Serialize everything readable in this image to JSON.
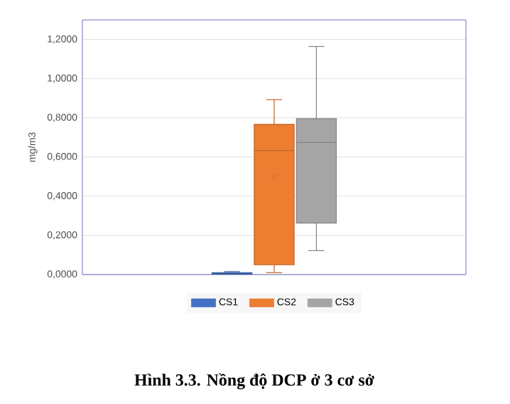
{
  "chart_data": {
    "type": "box",
    "title": "Hình 3.3. Nồng độ DCP ở 3 cơ sở",
    "ylabel": "mg/m3",
    "categories": [
      null
    ],
    "series": [
      {
        "name": "CS1",
        "color": "#4472c4",
        "boxes": [
          {
            "low": 0,
            "q1": 0.002,
            "median": 0.005,
            "q3": 0.01,
            "high": 0.015
          }
        ]
      },
      {
        "name": "CS2",
        "color": "#ed7d31",
        "boxes": [
          {
            "low": 0.01,
            "q1": 0.05,
            "median": 0.633,
            "q3": 0.767,
            "high": 0.893,
            "mean": 0.499
          }
        ]
      },
      {
        "name": "CS3",
        "color": "#a5a5a5",
        "boxes": [
          {
            "low": 0.122,
            "q1": 0.263,
            "median": 0.674,
            "q3": 0.796,
            "high": 1.164
          }
        ]
      }
    ],
    "ylim": [
      0,
      1.3
    ],
    "yticks": [
      {
        "value": 0,
        "label": "0,0000"
      },
      {
        "value": 0.2,
        "label": "0,2000"
      },
      {
        "value": 0.4,
        "label": "0,4000"
      },
      {
        "value": 0.6,
        "label": "0,6000"
      },
      {
        "value": 0.8,
        "label": "0,8000"
      },
      {
        "value": 1.0,
        "label": "1,0000"
      },
      {
        "value": 1.2,
        "label": "1,2000"
      }
    ],
    "grid": "y",
    "legend": "bottom"
  }
}
